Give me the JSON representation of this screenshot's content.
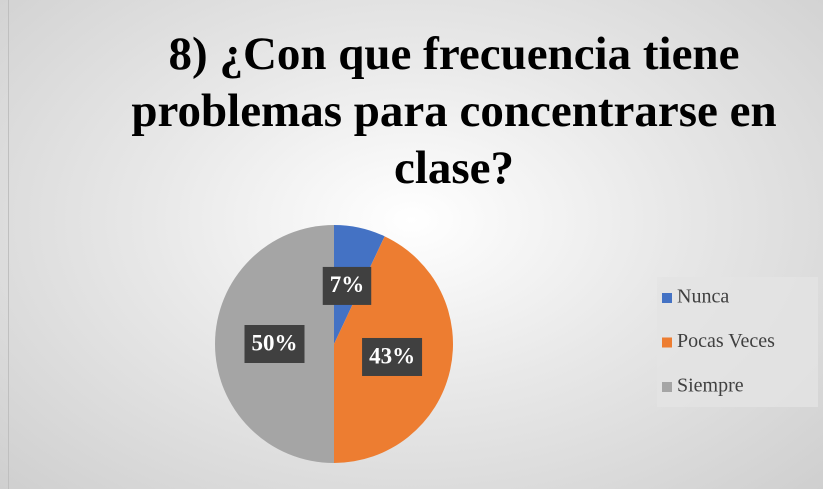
{
  "chart_data": {
    "type": "pie",
    "title": "8) ¿Con que frecuencia tiene problemas para concentrarse en clase?",
    "categories": [
      "Nunca",
      "Pocas Veces",
      "Siempre"
    ],
    "values": [
      7,
      43,
      50
    ],
    "value_labels": [
      "7%",
      "43%",
      "50%"
    ],
    "colors": [
      "#4472c4",
      "#ed7d31",
      "#a5a5a5"
    ],
    "legend": "right"
  }
}
